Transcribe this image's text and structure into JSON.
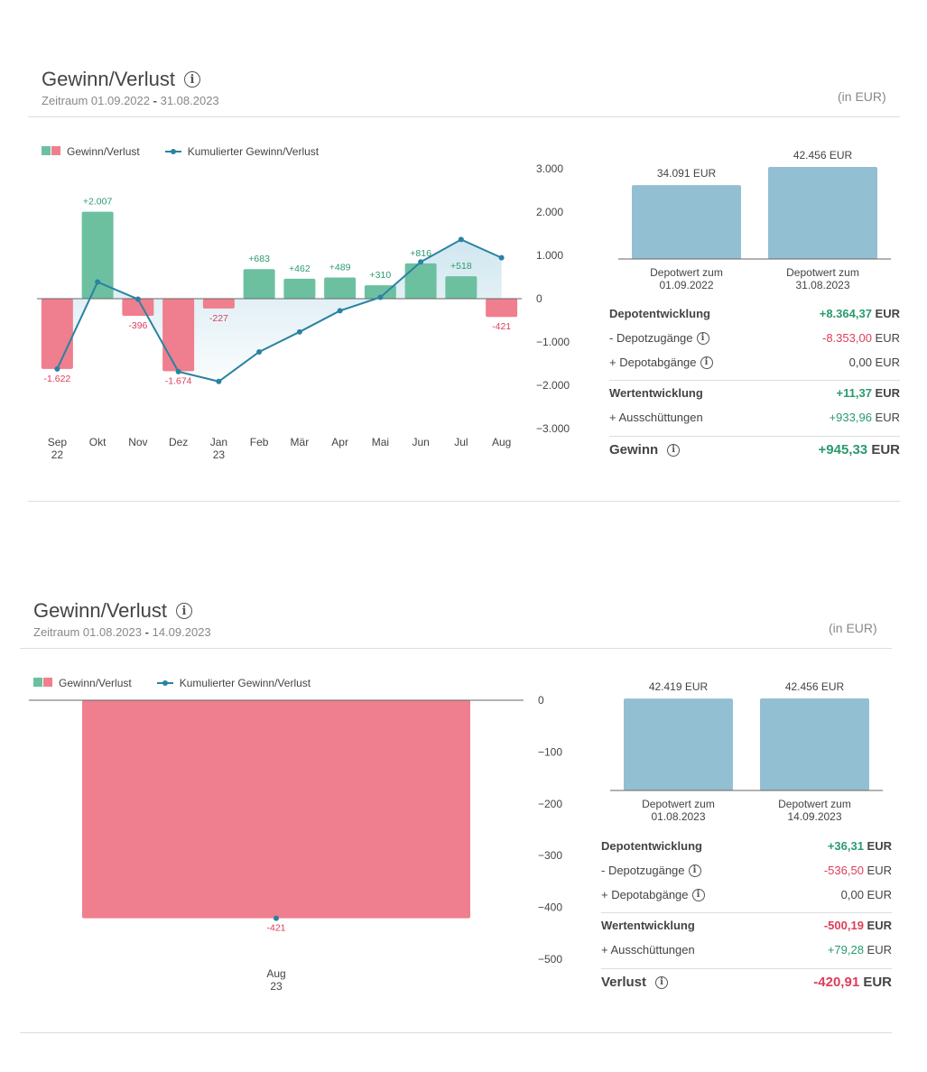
{
  "panels": [
    {
      "title": "Gewinn/Verlust",
      "period_label": "Zeitraum",
      "period_start": "01.09.2022",
      "period_sep": "-",
      "period_end": "31.08.2023",
      "unit": "(in EUR)",
      "legend": {
        "bars": "Gewinn/Verlust",
        "line": "Kumulierter Gewinn/Verlust"
      },
      "depot": {
        "start": {
          "value": "34.091 EUR",
          "label1": "Depotwert zum",
          "label2": "01.09.2022",
          "amount": 34091
        },
        "end": {
          "value": "42.456 EUR",
          "label1": "Depotwert zum",
          "label2": "31.08.2023",
          "amount": 42456
        }
      },
      "summary": [
        {
          "label": "Depotentwicklung",
          "value": "+8.364,37",
          "currency": "EUR",
          "style": "bold",
          "color": "pos",
          "info": false
        },
        {
          "label": "- Depotzugänge",
          "value": "-8.353,00",
          "currency": "EUR",
          "style": "normal",
          "color": "neg",
          "info": true
        },
        {
          "label": "+ Depotabgänge",
          "value": "0,00",
          "currency": "EUR",
          "style": "normal",
          "color": "neu",
          "info": true
        },
        {
          "label": "Wertentwicklung",
          "value": "+11,37",
          "currency": "EUR",
          "style": "bold",
          "color": "pos",
          "info": false
        },
        {
          "label": "+ Ausschüttungen",
          "value": "+933,96",
          "currency": "EUR",
          "style": "normal",
          "color": "pos",
          "info": false
        },
        {
          "label": "Gewinn",
          "value": "+945,33",
          "currency": "EUR",
          "style": "total",
          "color": "pos",
          "info": true
        }
      ]
    },
    {
      "title": "Gewinn/Verlust",
      "period_label": "Zeitraum",
      "period_start": "01.08.2023",
      "period_sep": "-",
      "period_end": "14.09.2023",
      "unit": "(in EUR)",
      "legend": {
        "bars": "Gewinn/Verlust",
        "line": "Kumulierter Gewinn/Verlust"
      },
      "depot": {
        "start": {
          "value": "42.419 EUR",
          "label1": "Depotwert zum",
          "label2": "01.08.2023",
          "amount": 42419
        },
        "end": {
          "value": "42.456 EUR",
          "label1": "Depotwert zum",
          "label2": "14.09.2023",
          "amount": 42456
        }
      },
      "summary": [
        {
          "label": "Depotentwicklung",
          "value": "+36,31",
          "currency": "EUR",
          "style": "bold",
          "color": "pos",
          "info": false
        },
        {
          "label": "- Depotzugänge",
          "value": "-536,50",
          "currency": "EUR",
          "style": "normal",
          "color": "neg",
          "info": true
        },
        {
          "label": "+ Depotabgänge",
          "value": "0,00",
          "currency": "EUR",
          "style": "normal",
          "color": "neu",
          "info": true
        },
        {
          "label": "Wertentwicklung",
          "value": "-500,19",
          "currency": "EUR",
          "style": "bold",
          "color": "neg",
          "info": false
        },
        {
          "label": "+ Ausschüttungen",
          "value": "+79,28",
          "currency": "EUR",
          "style": "normal",
          "color": "pos",
          "info": false
        },
        {
          "label": "Verlust",
          "value": "-420,91",
          "currency": "EUR",
          "style": "total",
          "color": "neg",
          "info": true
        }
      ]
    }
  ],
  "colors": {
    "positive": "#6cc0a0",
    "negative": "#ef7f8e",
    "line": "#2a82a2",
    "depot": "#93bfd3",
    "pos_text": "#2a9a6e",
    "neg_text": "#dd3d5a"
  },
  "chart_data": [
    {
      "type": "bar",
      "categories": [
        [
          "Sep",
          "22"
        ],
        [
          "Okt",
          ""
        ],
        [
          "Nov",
          ""
        ],
        [
          "Dez",
          ""
        ],
        [
          "Jan",
          "23"
        ],
        [
          "Feb",
          ""
        ],
        [
          "Mär",
          ""
        ],
        [
          "Apr",
          ""
        ],
        [
          "Mai",
          ""
        ],
        [
          "Jun",
          ""
        ],
        [
          "Jul",
          ""
        ],
        [
          "Aug",
          ""
        ]
      ],
      "series": [
        {
          "name": "Gewinn/Verlust",
          "type": "bar",
          "values": [
            -1622,
            2007,
            -396,
            -1674,
            -227,
            683,
            462,
            489,
            310,
            816,
            518,
            -421
          ],
          "labels": [
            "-1.622",
            "+2.007",
            "-396",
            "-1.674",
            "-227",
            "+683",
            "+462",
            "+489",
            "+310",
            "+816",
            "+518",
            "-421"
          ]
        },
        {
          "name": "Kumulierter Gewinn/Verlust",
          "type": "line",
          "values": [
            -1622,
            385,
            -11,
            -1685,
            -1912,
            -1229,
            -767,
            -278,
            32,
            848,
            1366,
            945
          ]
        }
      ],
      "y_ticks": [
        3000,
        2000,
        1000,
        0,
        -1000,
        -2000,
        -3000
      ],
      "y_tick_labels": [
        "3.000",
        "2.000",
        "1.000",
        "0",
        "−1.000",
        "−2.000",
        "−3.000"
      ],
      "ylim": [
        -3000,
        3000
      ],
      "legend": "top-left"
    },
    {
      "type": "bar",
      "categories": [
        [
          "Aug",
          "23"
        ]
      ],
      "series": [
        {
          "name": "Gewinn/Verlust",
          "type": "bar",
          "values": [
            -421
          ],
          "labels": [
            "-421"
          ]
        },
        {
          "name": "Kumulierter Gewinn/Verlust",
          "type": "line",
          "values": [
            -421
          ]
        }
      ],
      "y_ticks": [
        0,
        -100,
        -200,
        -300,
        -400,
        -500
      ],
      "y_tick_labels": [
        "0",
        "−100",
        "−200",
        "−300",
        "−400",
        "−500"
      ],
      "ylim": [
        -500,
        0
      ],
      "legend": "top-left"
    }
  ]
}
